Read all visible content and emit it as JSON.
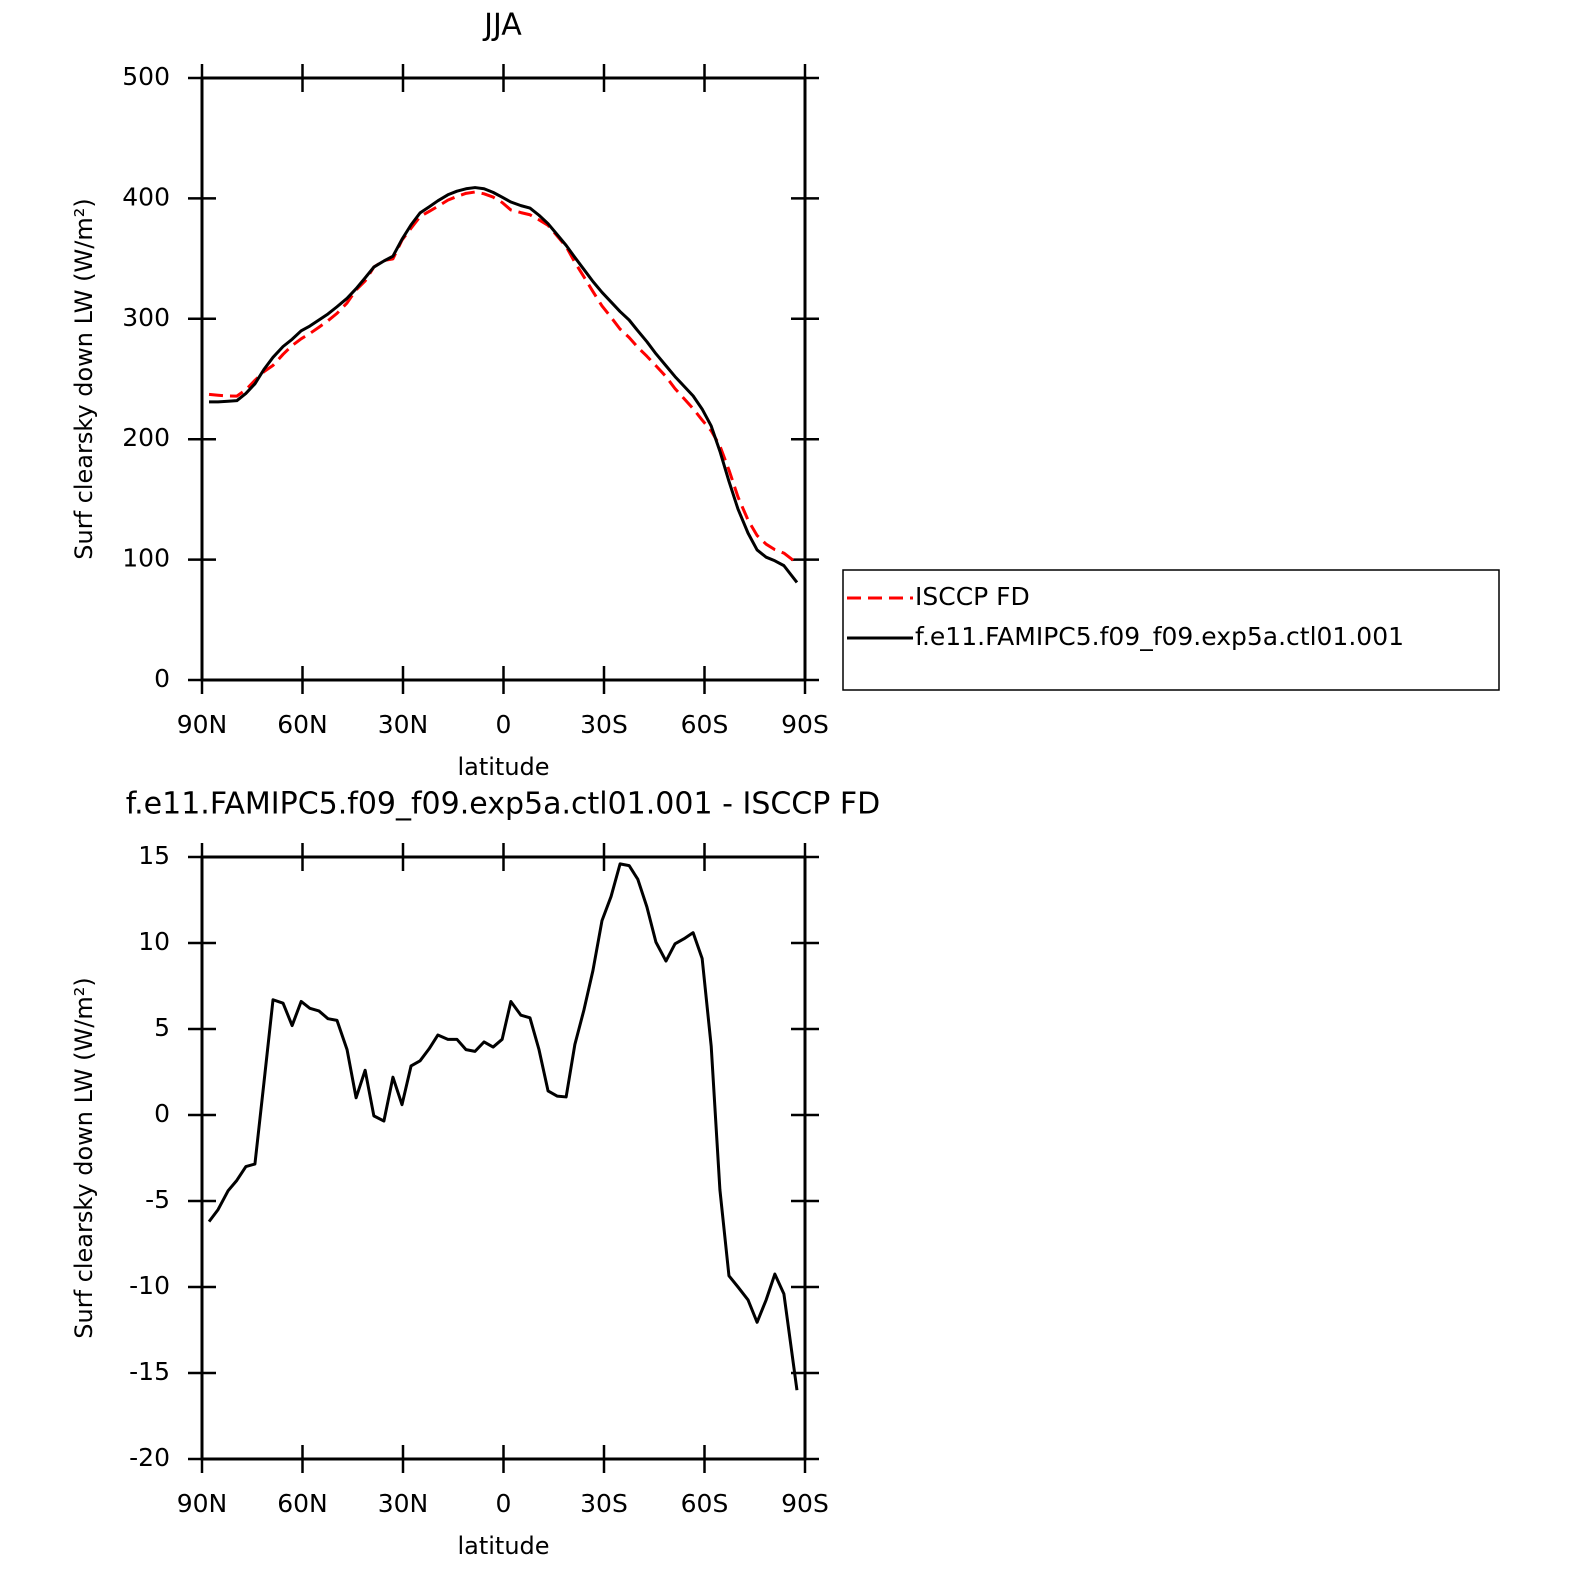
{
  "chart_data": [
    {
      "type": "line",
      "title": "JJA",
      "x_label": "latitude",
      "y_label": "Surf clearsky down LW (W/m²)",
      "x": [
        87.9,
        85.2,
        82.2,
        79.6,
        76.9,
        74.2,
        71.5,
        68.8,
        65.8,
        63.1,
        60.4,
        57.8,
        55.1,
        52.4,
        49.7,
        46.7,
        44.0,
        41.3,
        38.7,
        35.7,
        33.0,
        30.3,
        27.6,
        24.9,
        22.2,
        19.6,
        16.6,
        13.9,
        11.2,
        8.5,
        5.8,
        3.1,
        0.4,
        -2.2,
        -5.2,
        -7.9,
        -10.6,
        -13.3,
        -16.0,
        -18.7,
        -21.3,
        -24.0,
        -26.7,
        -29.4,
        -32.1,
        -34.8,
        -37.5,
        -40.1,
        -42.8,
        -45.5,
        -48.5,
        -51.2,
        -53.9,
        -56.6,
        -59.3,
        -62.0,
        -64.6,
        -67.3,
        -70.0,
        -73.0,
        -75.7,
        -78.4,
        -81.0,
        -83.7,
        -87.6
      ],
      "series": [
        {
          "name": "ISCCP FD",
          "color": "#ff0000",
          "linestyle": "dashed",
          "values": [
            237.2,
            236.5,
            235.9,
            235.8,
            241,
            248.9,
            256.1,
            261.3,
            270.5,
            277.8,
            283.4,
            287.8,
            293,
            298.4,
            304.5,
            313.2,
            324,
            331.4,
            343,
            348.4,
            349.8,
            365.4,
            375.2,
            384.9,
            389.2,
            393.4,
            398.6,
            401.6,
            404.2,
            405.3,
            403.8,
            401.1,
            396.6,
            390.4,
            388.2,
            386.4,
            382.2,
            377.6,
            368.9,
            360,
            346.9,
            334.9,
            322.6,
            310.7,
            301.3,
            291.4,
            284.5,
            276.3,
            268.9,
            261,
            252,
            242,
            233.7,
            225.4,
            215.9,
            207,
            194.4,
            174.4,
            152,
            132.8,
            120,
            112.8,
            108.3,
            105.4,
            97
          ]
        },
        {
          "name": "f.e11.FAMIPC5.f09_f09.exp5a.ctl01.001",
          "color": "#000000",
          "linestyle": "solid",
          "values": [
            231,
            231,
            231.5,
            232,
            238,
            246,
            258,
            268,
            277,
            283,
            290,
            294,
            299,
            304,
            310,
            317,
            325,
            334,
            343,
            348,
            352,
            366,
            378,
            388,
            393,
            398,
            403,
            406,
            408,
            409,
            408,
            405,
            401,
            397,
            394,
            392,
            386,
            379,
            370,
            361,
            351,
            341,
            331,
            322,
            314,
            306,
            299,
            290,
            281,
            271,
            261,
            252,
            244,
            236,
            225,
            211,
            190,
            165,
            142,
            122,
            108,
            102,
            99,
            95,
            81
          ]
        }
      ],
      "xlim": [
        90,
        -90
      ],
      "xticks": [
        {
          "value": 90,
          "label": "90N"
        },
        {
          "value": 60,
          "label": "60N"
        },
        {
          "value": 30,
          "label": "30N"
        },
        0,
        {
          "value": -30,
          "label": "30S"
        },
        {
          "value": -60,
          "label": "60S"
        },
        {
          "value": -90,
          "label": "90S"
        }
      ],
      "ylim": [
        0,
        500
      ],
      "yticks": [
        0,
        100,
        200,
        300,
        400,
        500
      ],
      "legend": "right"
    },
    {
      "type": "line",
      "title": "f.e11.FAMIPC5.f09_f09.exp5a.ctl01.001 - ISCCP FD",
      "x_label": "latitude",
      "y_label": "Surf clearsky down LW (W/m²)",
      "x": [
        87.9,
        85.2,
        82.2,
        79.6,
        76.9,
        74.2,
        71.5,
        68.8,
        65.8,
        63.1,
        60.4,
        57.8,
        55.1,
        52.4,
        49.7,
        46.7,
        44.0,
        41.3,
        38.7,
        35.7,
        33.0,
        30.3,
        27.6,
        24.9,
        22.2,
        19.6,
        16.6,
        13.9,
        11.2,
        8.5,
        5.8,
        3.1,
        0.4,
        -2.2,
        -5.2,
        -7.9,
        -10.6,
        -13.3,
        -16.0,
        -18.7,
        -21.3,
        -24.0,
        -26.7,
        -29.4,
        -32.1,
        -34.8,
        -37.5,
        -40.1,
        -42.8,
        -45.5,
        -48.5,
        -51.2,
        -53.9,
        -56.6,
        -59.3,
        -62.0,
        -64.6,
        -67.3,
        -70.0,
        -73.0,
        -75.7,
        -78.4,
        -81.0,
        -83.7,
        -87.6
      ],
      "values": [
        -6.2,
        -5.5,
        -4.4,
        -3.8,
        -3.0,
        -2.85,
        1.9,
        6.7,
        6.5,
        5.2,
        6.6,
        6.2,
        6.05,
        5.6,
        5.5,
        3.8,
        1.0,
        2.6,
        -0.05,
        -0.35,
        2.2,
        0.6,
        2.85,
        3.15,
        3.85,
        4.65,
        4.4,
        4.4,
        3.8,
        3.7,
        4.25,
        3.95,
        4.4,
        6.6,
        5.8,
        5.65,
        3.8,
        1.4,
        1.1,
        1.05,
        4.1,
        6.1,
        8.4,
        11.3,
        12.7,
        14.6,
        14.5,
        13.7,
        12.1,
        10.05,
        8.95,
        9.95,
        10.25,
        10.6,
        9.1,
        4.0,
        -4.35,
        -9.35,
        -10.0,
        -10.75,
        -12.05,
        -10.75,
        -9.25,
        -10.4,
        -16.0
      ],
      "color": "#000000",
      "xlim": [
        90,
        -90
      ],
      "xticks": [
        {
          "value": 90,
          "label": "90N"
        },
        {
          "value": 60,
          "label": "60N"
        },
        {
          "value": 30,
          "label": "30N"
        },
        0,
        {
          "value": -30,
          "label": "30S"
        },
        {
          "value": -60,
          "label": "60S"
        },
        {
          "value": -90,
          "label": "90S"
        }
      ],
      "ylim": [
        -20,
        15
      ],
      "yticks": [
        -20,
        -15,
        -10,
        -5,
        0,
        5,
        10,
        15
      ]
    }
  ]
}
